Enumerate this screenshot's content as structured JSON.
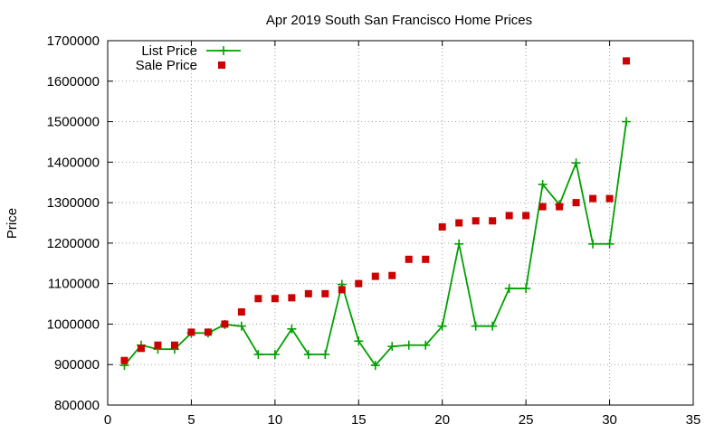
{
  "chart_data": {
    "type": "line",
    "title": "Apr 2019 South San Francisco Home Prices",
    "xlabel": "",
    "ylabel": "Price",
    "xlim": [
      0,
      35
    ],
    "ylim": [
      800000,
      1700000
    ],
    "xticks": [
      0,
      5,
      10,
      15,
      20,
      25,
      30,
      35
    ],
    "yticks": [
      800000,
      900000,
      1000000,
      1100000,
      1200000,
      1300000,
      1400000,
      1500000,
      1600000,
      1700000
    ],
    "grid": true,
    "legend_position": "top-left",
    "series": [
      {
        "name": "List Price",
        "style": "line+plus",
        "color": "#00a000",
        "x": [
          1,
          2,
          3,
          4,
          5,
          6,
          7,
          8,
          9,
          10,
          11,
          12,
          13,
          14,
          15,
          16,
          17,
          18,
          19,
          20,
          21,
          22,
          23,
          24,
          25,
          26,
          27,
          28,
          29,
          30,
          31
        ],
        "y": [
          898000,
          948000,
          938000,
          938000,
          978000,
          978000,
          999000,
          995000,
          925000,
          925000,
          988000,
          925000,
          925000,
          1098000,
          958000,
          898000,
          945000,
          948000,
          948000,
          995000,
          1198000,
          995000,
          995000,
          1088000,
          1088000,
          1345000,
          1295000,
          1398000,
          1198000,
          1198000,
          1500000
        ]
      },
      {
        "name": "Sale Price",
        "style": "square",
        "color": "#cc0000",
        "x": [
          1,
          2,
          3,
          4,
          5,
          6,
          7,
          8,
          9,
          10,
          11,
          12,
          13,
          14,
          15,
          16,
          17,
          18,
          19,
          20,
          21,
          22,
          23,
          24,
          25,
          26,
          27,
          28,
          29,
          30,
          31
        ],
        "y": [
          910000,
          940000,
          948000,
          948000,
          980000,
          980000,
          1000000,
          1030000,
          1063000,
          1063000,
          1065000,
          1075000,
          1075000,
          1085000,
          1100000,
          1118000,
          1120000,
          1160000,
          1160000,
          1240000,
          1250000,
          1255000,
          1255000,
          1268000,
          1268000,
          1290000,
          1290000,
          1300000,
          1310000,
          1310000,
          1650000
        ]
      }
    ]
  }
}
